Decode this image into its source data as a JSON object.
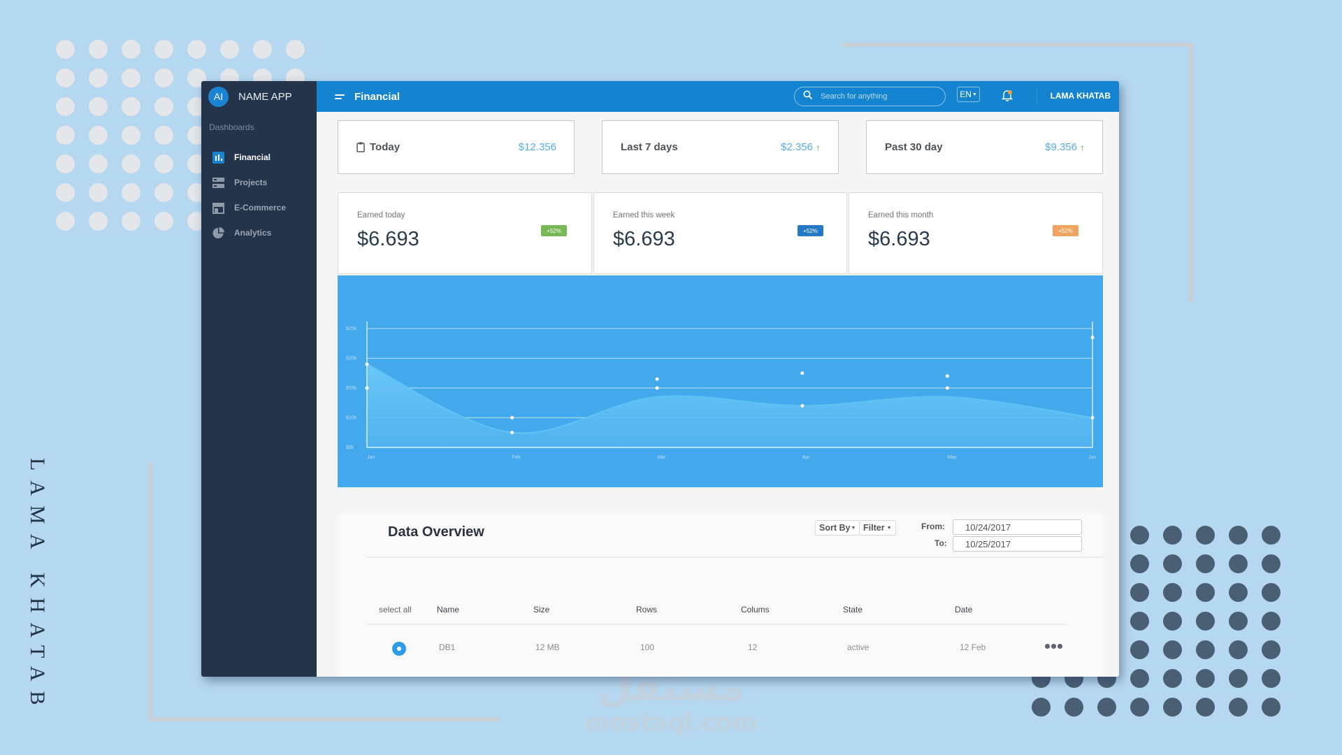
{
  "background": {
    "vertical_text": "LAMA KHATAB",
    "watermark_arabic": "مستقل",
    "watermark_latin": "mostaql.com"
  },
  "app": {
    "brand": {
      "initials": "AI",
      "name": "NAME APP"
    },
    "sidebar": {
      "section_label": "Dashboards",
      "items": [
        {
          "label": "Financial",
          "icon": "bar-chart-icon",
          "active": true
        },
        {
          "label": "Projects",
          "icon": "server-icon",
          "active": false
        },
        {
          "label": "E-Commerce",
          "icon": "store-icon",
          "active": false
        },
        {
          "label": "Analytics",
          "icon": "pie-chart-icon",
          "active": false
        }
      ]
    },
    "topbar": {
      "title": "Financial",
      "search_placeholder": "Search for anything",
      "language": "EN",
      "notification_dot_color": "#f39c3d",
      "user_name": "LAMA KHATAB"
    },
    "summary_cards": [
      {
        "label": "Today",
        "value": "$12.356",
        "icon": "clipboard-icon",
        "trend": ""
      },
      {
        "label": "Last 7 days",
        "value": "$2.356",
        "trend": "up"
      },
      {
        "label": "Past 30 day",
        "value": "$9.356",
        "trend": "up"
      }
    ],
    "earned_cards": [
      {
        "caption": "Earned today",
        "amount": "$6.693",
        "badge": "+52%",
        "badge_color": "#78b856"
      },
      {
        "caption": "Earned this week",
        "amount": "$6.693",
        "badge": "+52%",
        "badge_color": "#2578c4"
      },
      {
        "caption": "Earned this month",
        "amount": "$6.693",
        "badge": "+52%",
        "badge_color": "#efa45f"
      }
    ],
    "overview": {
      "title": "Data Overview",
      "sort_label": "Sort By",
      "filter_label": "Filter",
      "from_label": "From:",
      "to_label": "To:",
      "from_value": "10/24/2017",
      "to_value": "10/25/2017",
      "columns": [
        "select all",
        "Name",
        "Size",
        "Rows",
        "Colums",
        "State",
        "Date"
      ],
      "rows": [
        {
          "name": "DB1",
          "size": "12 MB",
          "rows": "100",
          "columns": "12",
          "state": "active",
          "date": "12 Feb",
          "selected": true
        }
      ]
    }
  },
  "chart_data": {
    "type": "area",
    "title": "",
    "xlabel": "",
    "ylabel": "",
    "categories": [
      "Jan",
      "Feb",
      "Mar",
      "Apr",
      "May",
      "Jun"
    ],
    "y_ticks": [
      "$5k",
      "$10k",
      "$15k",
      "$20k",
      "$25k"
    ],
    "ylim": [
      5000,
      25000
    ],
    "grid": true,
    "series": [
      {
        "name": "area",
        "values": [
          19000,
          7500,
          13500,
          12000,
          13500,
          10000
        ]
      },
      {
        "name": "markers-a",
        "values": [
          15000,
          10000,
          16500,
          17500,
          17000,
          23500
        ]
      },
      {
        "name": "markers-b",
        "values": [
          19000,
          7500,
          15000,
          12000,
          15000,
          10000
        ]
      }
    ]
  }
}
